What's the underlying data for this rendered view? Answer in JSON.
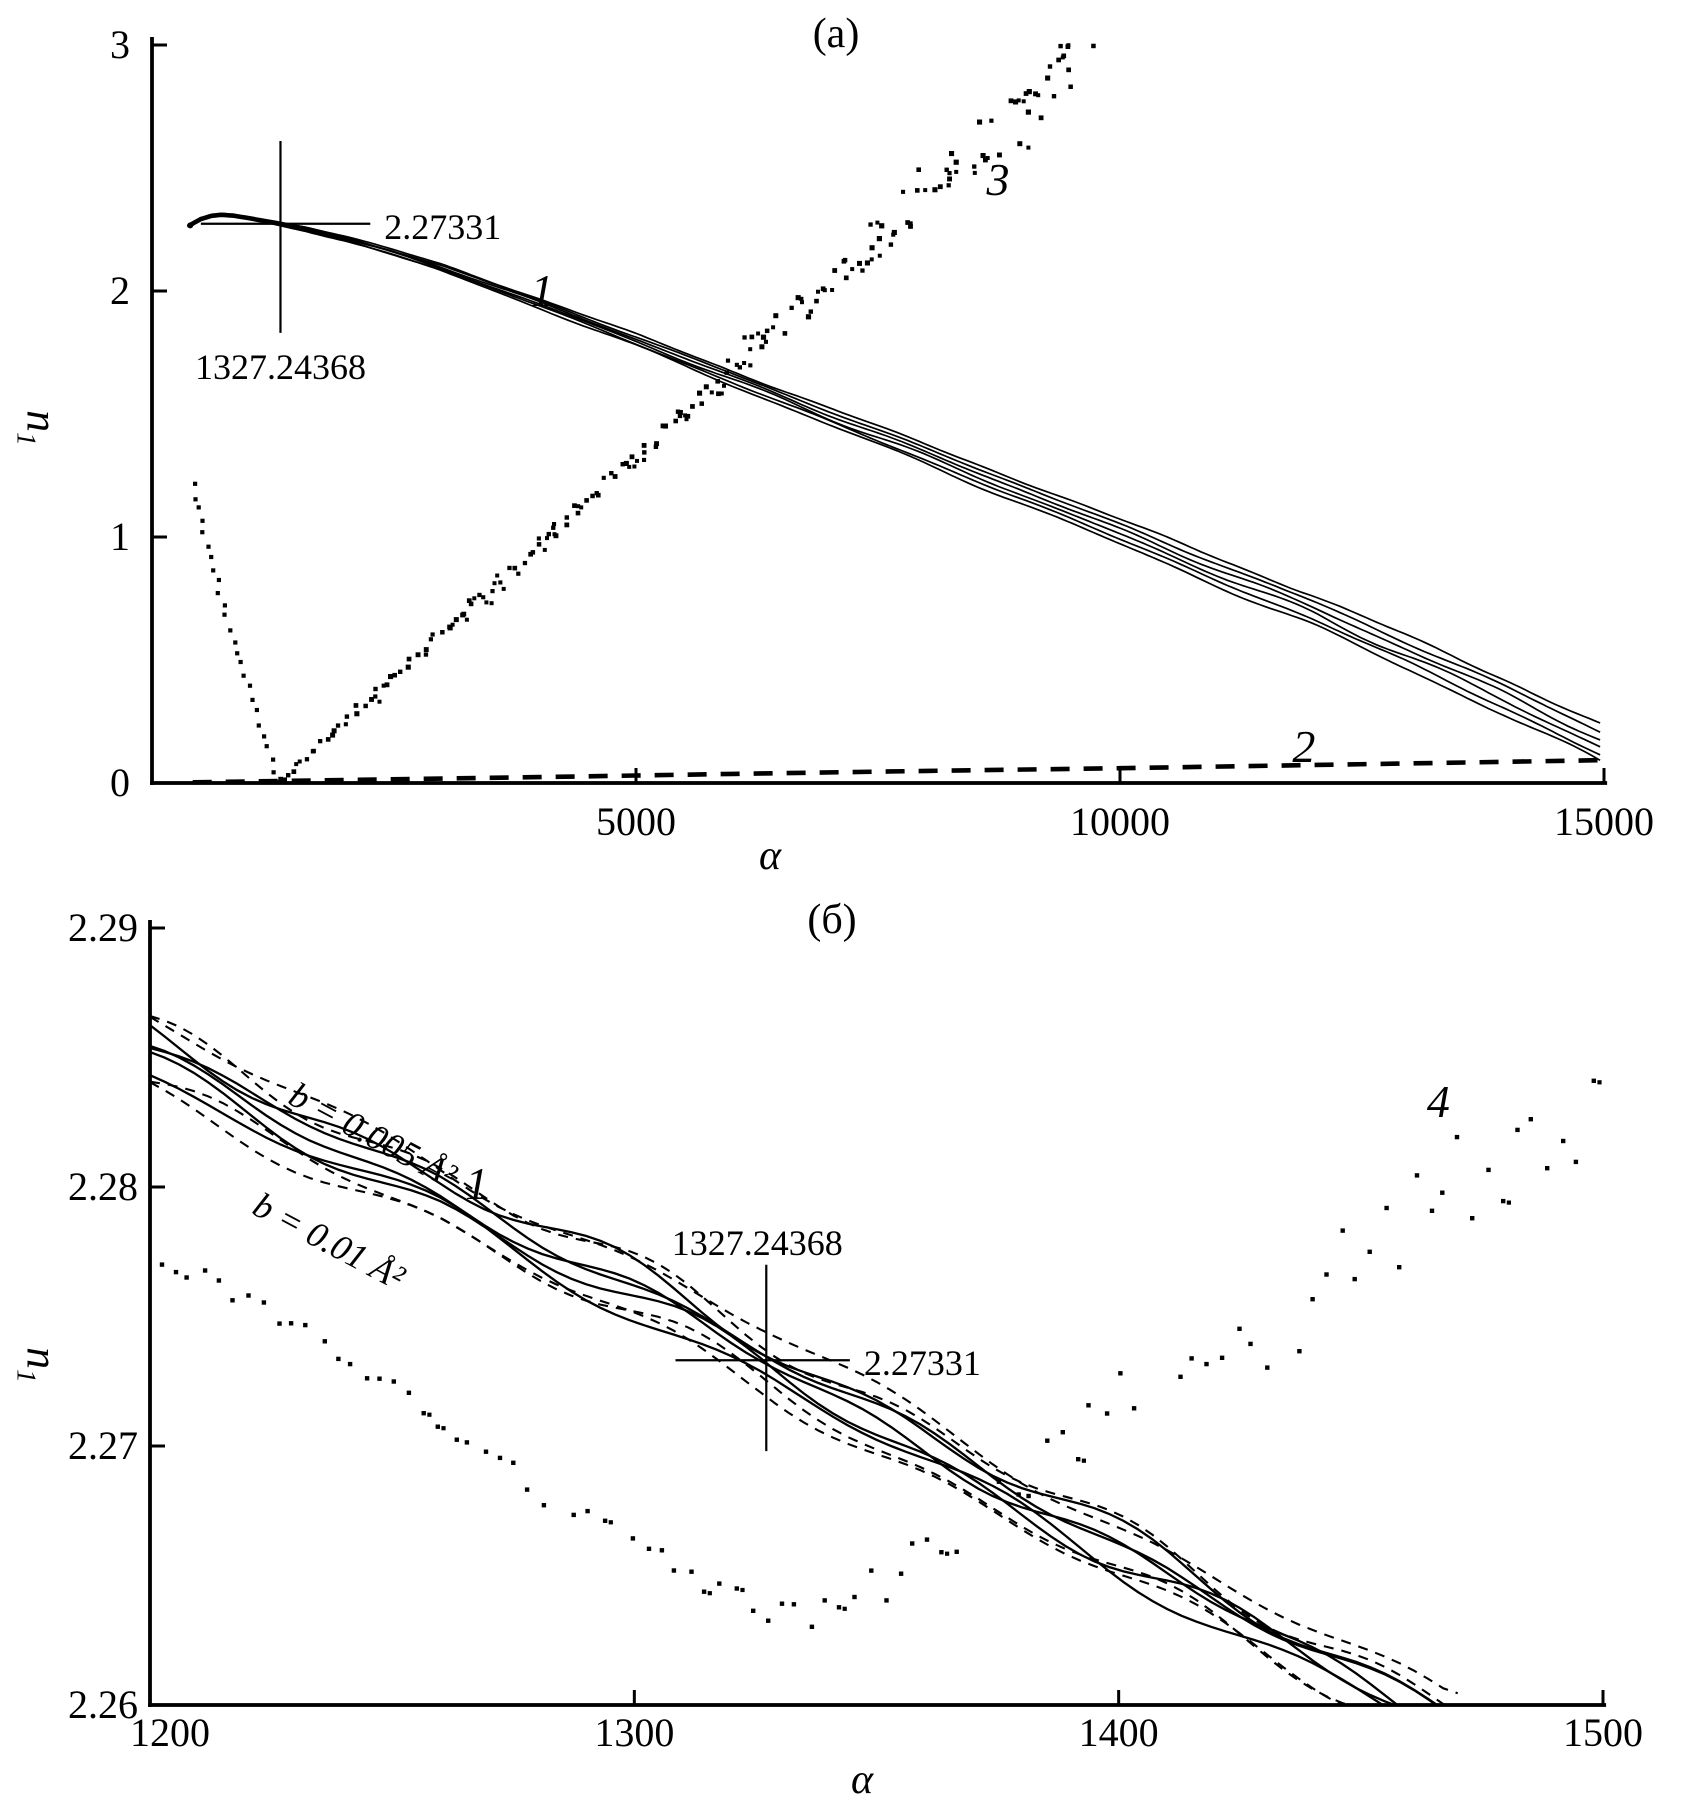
{
  "figure_name": "refractive-index-vs-alpha-two-panel-figure",
  "chart_data": [
    {
      "panel": "a",
      "type": "scatter",
      "title": "(a)",
      "xlabel": "α",
      "ylabel_base": "n",
      "ylabel_sub": "1",
      "x_range": [
        0,
        15000
      ],
      "y_range": [
        0,
        3
      ],
      "grid": false,
      "x_ticks": [
        {
          "value": 5000,
          "label": "5000"
        },
        {
          "value": 10000,
          "label": "10000"
        },
        {
          "value": 15000,
          "label": "15000"
        }
      ],
      "y_ticks": [
        {
          "value": 0,
          "label": "0"
        },
        {
          "value": 1,
          "label": "1"
        },
        {
          "value": 2,
          "label": "2"
        },
        {
          "value": 3,
          "label": "3"
        }
      ],
      "series": [
        {
          "id": "curve-1",
          "label": "1",
          "kind": "band",
          "lines": 6,
          "label_at": {
            "x": 4030,
            "y": 2.0
          },
          "halfwidth_end": 0.0765,
          "center": [
            [
              385,
              2.266
            ],
            [
              500,
              2.292
            ],
            [
              620,
              2.306
            ],
            [
              720,
              2.31
            ],
            [
              850,
              2.306
            ],
            [
              1000,
              2.296
            ],
            [
              1160,
              2.285
            ],
            [
              1327.24,
              2.2733
            ],
            [
              1600,
              2.252
            ],
            [
              2000,
              2.212
            ],
            [
              2500,
              2.155
            ],
            [
              3000,
              2.095
            ],
            [
              4000,
              1.95
            ],
            [
              5000,
              1.8
            ],
            [
              6000,
              1.645
            ],
            [
              7000,
              1.49
            ],
            [
              8000,
              1.335
            ],
            [
              9000,
              1.18
            ],
            [
              10000,
              1.02
            ],
            [
              11000,
              0.86
            ],
            [
              12000,
              0.7
            ],
            [
              13000,
              0.525
            ],
            [
              14000,
              0.345
            ],
            [
              15000,
              0.155
            ]
          ]
        },
        {
          "id": "curve-2",
          "label": "2",
          "kind": "dashed-line",
          "label_at": {
            "x": 11900,
            "y": 0.145
          },
          "points": [
            [
              420,
              0.003
            ],
            [
              2000,
              0.012
            ],
            [
              4000,
              0.024
            ],
            [
              6000,
              0.037
            ],
            [
              8000,
              0.049
            ],
            [
              10000,
              0.06
            ],
            [
              12000,
              0.073
            ],
            [
              14000,
              0.086
            ],
            [
              15000,
              0.093
            ]
          ]
        },
        {
          "id": "curve-3",
          "label": "3",
          "kind": "dotted-scatter",
          "label_at": {
            "x": 8740,
            "y": 2.45
          },
          "trend_down": [
            [
              430,
              1.21
            ],
            [
              550,
              1.0
            ],
            [
              700,
              0.78
            ],
            [
              850,
              0.575
            ],
            [
              1000,
              0.39
            ],
            [
              1150,
              0.21
            ],
            [
              1295,
              0.01
            ]
          ],
          "trend_up": [
            [
              1300,
              0.0
            ],
            [
              9650,
              3.0
            ]
          ],
          "y_clip": 3.0
        }
      ],
      "crosshair": {
        "x": 1327.24368,
        "y": 2.27331,
        "x_label": "1327.24368",
        "y_label": "2.27331",
        "v_extent": [
          1.83,
          2.61
        ],
        "h_extent": [
          505,
          2255
        ]
      }
    },
    {
      "panel": "б",
      "type": "scatter",
      "title": "(б)",
      "xlabel": "α",
      "ylabel_base": "n",
      "ylabel_sub": "1",
      "x_range": [
        1200,
        1500
      ],
      "y_range": [
        2.26,
        2.29
      ],
      "grid": false,
      "x_ticks": [
        {
          "value": 1200,
          "label": "1200"
        },
        {
          "value": 1300,
          "label": "1300"
        },
        {
          "value": 1400,
          "label": "1400"
        },
        {
          "value": 1500,
          "label": "1500"
        }
      ],
      "y_ticks": [
        {
          "value": 2.26,
          "label": "2.26"
        },
        {
          "value": 2.27,
          "label": "2.27"
        },
        {
          "value": 2.28,
          "label": "2.28"
        },
        {
          "value": 2.29,
          "label": "2.29"
        }
      ],
      "series": [
        {
          "id": "curve-1b",
          "label": "1",
          "kind": "braided-band",
          "label_at": {
            "x": 1267.5,
            "y": 2.2801
          },
          "center": [
            [
              1200,
              2.285
            ],
            [
              1260,
              2.2797
            ],
            [
              1327.24,
              2.27331
            ],
            [
              1400,
              2.2659
            ],
            [
              1468,
              2.2592
            ]
          ],
          "annotations": [
            {
              "text": "b = 0.005 Å²",
              "x": 1246,
              "y": 2.282,
              "rot": 28
            },
            {
              "text": "b = 0.01 Å²",
              "x": 1237,
              "y": 2.2779,
              "rot": 28
            }
          ]
        },
        {
          "id": "curve-4",
          "label": "4",
          "kind": "dotted-scatter",
          "label_at": {
            "x": 1466,
            "y": 2.2833
          },
          "trend": [
            [
              1202,
              2.2773
            ],
            [
              1230,
              2.2747
            ],
            [
              1255,
              2.2718
            ],
            [
              1280,
              2.2683
            ],
            [
              1300,
              2.266
            ],
            [
              1315,
              2.2646
            ],
            [
              1332,
              2.2634
            ],
            [
              1348,
              2.2646
            ],
            [
              1362,
              2.2657
            ],
            [
              1374,
              2.2676
            ],
            [
              1386,
              2.27
            ],
            [
              1396,
              2.2713
            ],
            [
              1406,
              2.2727
            ],
            [
              1418,
              2.2744
            ],
            [
              1430,
              2.2729
            ],
            [
              1444,
              2.2762
            ],
            [
              1458,
              2.2787
            ],
            [
              1472,
              2.2802
            ],
            [
              1486,
              2.282
            ],
            [
              1500,
              2.2828
            ]
          ]
        }
      ],
      "crosshair": {
        "x": 1327.24368,
        "y": 2.27331,
        "x_label": "1327.24368",
        "y_label": "2.27331",
        "v_extent": [
          2.2698,
          2.277
        ],
        "h_extent": [
          1308.5,
          1344.5
        ]
      }
    }
  ]
}
